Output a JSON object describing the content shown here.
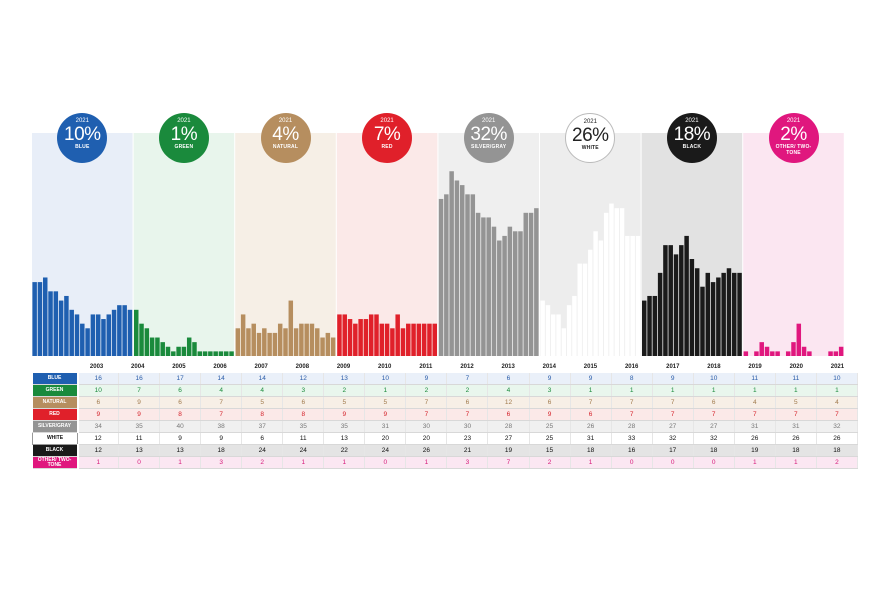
{
  "chart_data": {
    "type": "bar",
    "years": [
      2003,
      2004,
      2005,
      2006,
      2007,
      2008,
      2009,
      2010,
      2011,
      2012,
      2013,
      2014,
      2015,
      2016,
      2017,
      2018,
      2019,
      2020,
      2021
    ],
    "badge_year": "2021",
    "series": [
      {
        "key": "blue",
        "label": "BLUE",
        "badge_name": "BLUE",
        "badge_value": "10%",
        "color": "#1f5fb0",
        "bg": "#e8eef8",
        "table_bg": "#eaf0f9",
        "text_color": "#2a5ca8",
        "values": [
          16,
          16,
          17,
          14,
          14,
          12,
          13,
          10,
          9,
          7,
          6,
          9,
          9,
          8,
          9,
          10,
          11,
          11,
          10
        ]
      },
      {
        "key": "green",
        "label": "GREEN",
        "badge_name": "GREEN",
        "badge_value": "1%",
        "color": "#1a8a3c",
        "bg": "#e8f5ec",
        "table_bg": "#e9f6ed",
        "text_color": "#1a8a3c",
        "values": [
          10,
          7,
          6,
          4,
          4,
          3,
          2,
          1,
          2,
          2,
          4,
          3,
          1,
          1,
          1,
          1,
          1,
          1,
          1
        ]
      },
      {
        "key": "natural",
        "label": "NATURAL",
        "badge_name": "NATURAL",
        "badge_value": "4%",
        "color": "#b68e5f",
        "bg": "#f6efe6",
        "table_bg": "#f7efe6",
        "text_color": "#a07a4c",
        "values": [
          6,
          9,
          6,
          7,
          5,
          6,
          5,
          5,
          7,
          6,
          12,
          6,
          7,
          7,
          7,
          6,
          4,
          5,
          4
        ]
      },
      {
        "key": "red",
        "label": "RED",
        "badge_name": "RED",
        "badge_value": "7%",
        "color": "#e0202a",
        "bg": "#fbe9e8",
        "table_bg": "#fbe9e8",
        "text_color": "#d42028",
        "values": [
          9,
          9,
          8,
          7,
          8,
          8,
          9,
          9,
          7,
          7,
          6,
          9,
          6,
          7,
          7,
          7,
          7,
          7,
          7
        ]
      },
      {
        "key": "silver",
        "label": "SILVER/GRAY",
        "badge_name": "SILVER/GRAY",
        "badge_value": "32%",
        "color": "#949494",
        "bg": "#efefef",
        "table_bg": "#f0f0f0",
        "text_color": "#777777",
        "values": [
          34,
          35,
          40,
          38,
          37,
          35,
          35,
          31,
          30,
          30,
          28,
          25,
          26,
          28,
          27,
          27,
          31,
          31,
          32
        ]
      },
      {
        "key": "white",
        "label": "WHITE",
        "badge_name": "WHITE",
        "badge_value": "26%",
        "color": "#ffffff",
        "bg": "#ededed",
        "table_bg": "#ffffff",
        "text_color": "#111111",
        "values": [
          12,
          11,
          9,
          9,
          6,
          11,
          13,
          20,
          20,
          23,
          27,
          25,
          31,
          33,
          32,
          32,
          26,
          26,
          26
        ]
      },
      {
        "key": "black",
        "label": "BLACK",
        "badge_name": "BLACK",
        "badge_value": "18%",
        "color": "#1a1a1a",
        "bg": "#e2e2e2",
        "table_bg": "#e4e4e4",
        "text_color": "#111111",
        "values": [
          12,
          13,
          13,
          18,
          24,
          24,
          22,
          24,
          26,
          21,
          19,
          15,
          18,
          16,
          17,
          18,
          19,
          18,
          18
        ]
      },
      {
        "key": "other",
        "label": "OTHER/ TWO-TONE",
        "badge_name": "OTHER/ TWO-TONE",
        "badge_value": "2%",
        "color": "#e0177e",
        "bg": "#fbe6f1",
        "table_bg": "#fbe7f2",
        "text_color": "#d61a7a",
        "values": [
          1,
          0,
          1,
          3,
          2,
          1,
          1,
          0,
          1,
          3,
          7,
          2,
          1,
          0,
          0,
          0,
          1,
          1,
          2
        ]
      }
    ]
  }
}
